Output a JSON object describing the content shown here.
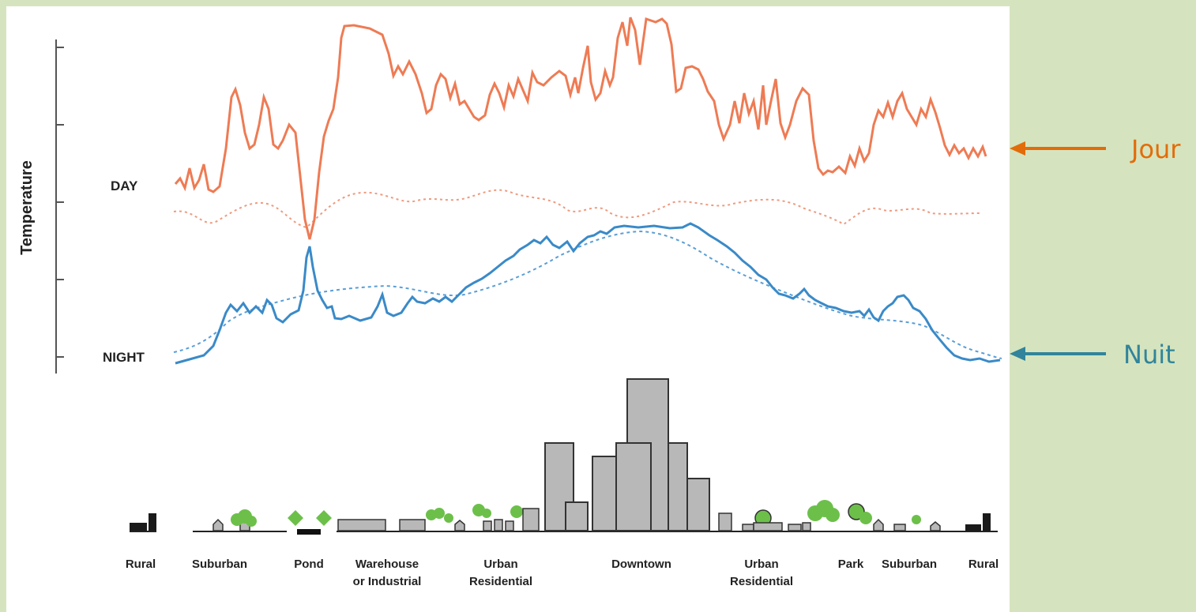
{
  "axis": {
    "ylabel": "Temperature"
  },
  "curves": {
    "day_label": "DAY",
    "night_label": "NIGHT"
  },
  "zones": [
    {
      "id": "rural-1",
      "lines": [
        "Rural"
      ]
    },
    {
      "id": "suburban-1",
      "lines": [
        "Suburban"
      ]
    },
    {
      "id": "pond",
      "lines": [
        "Pond"
      ]
    },
    {
      "id": "warehouse",
      "lines": [
        "Warehouse",
        "or Industrial"
      ]
    },
    {
      "id": "urban-res-1",
      "lines": [
        "Urban",
        "Residential"
      ]
    },
    {
      "id": "downtown",
      "lines": [
        "Downtown"
      ]
    },
    {
      "id": "urban-res-2",
      "lines": [
        "Urban",
        "Residential"
      ]
    },
    {
      "id": "park",
      "lines": [
        "Park"
      ]
    },
    {
      "id": "suburban-2",
      "lines": [
        "Suburban"
      ]
    },
    {
      "id": "rural-2",
      "lines": [
        "Rural"
      ]
    }
  ],
  "annotations": {
    "day": {
      "label": "Jour",
      "color": "#e36c0a"
    },
    "night": {
      "label": "Nuit",
      "color": "#31849b"
    }
  },
  "colors": {
    "day_line": "#ee7b54",
    "night_line": "#3a8ac8",
    "building_fill": "#b8b8b8",
    "tree": "#6cc04a"
  }
}
